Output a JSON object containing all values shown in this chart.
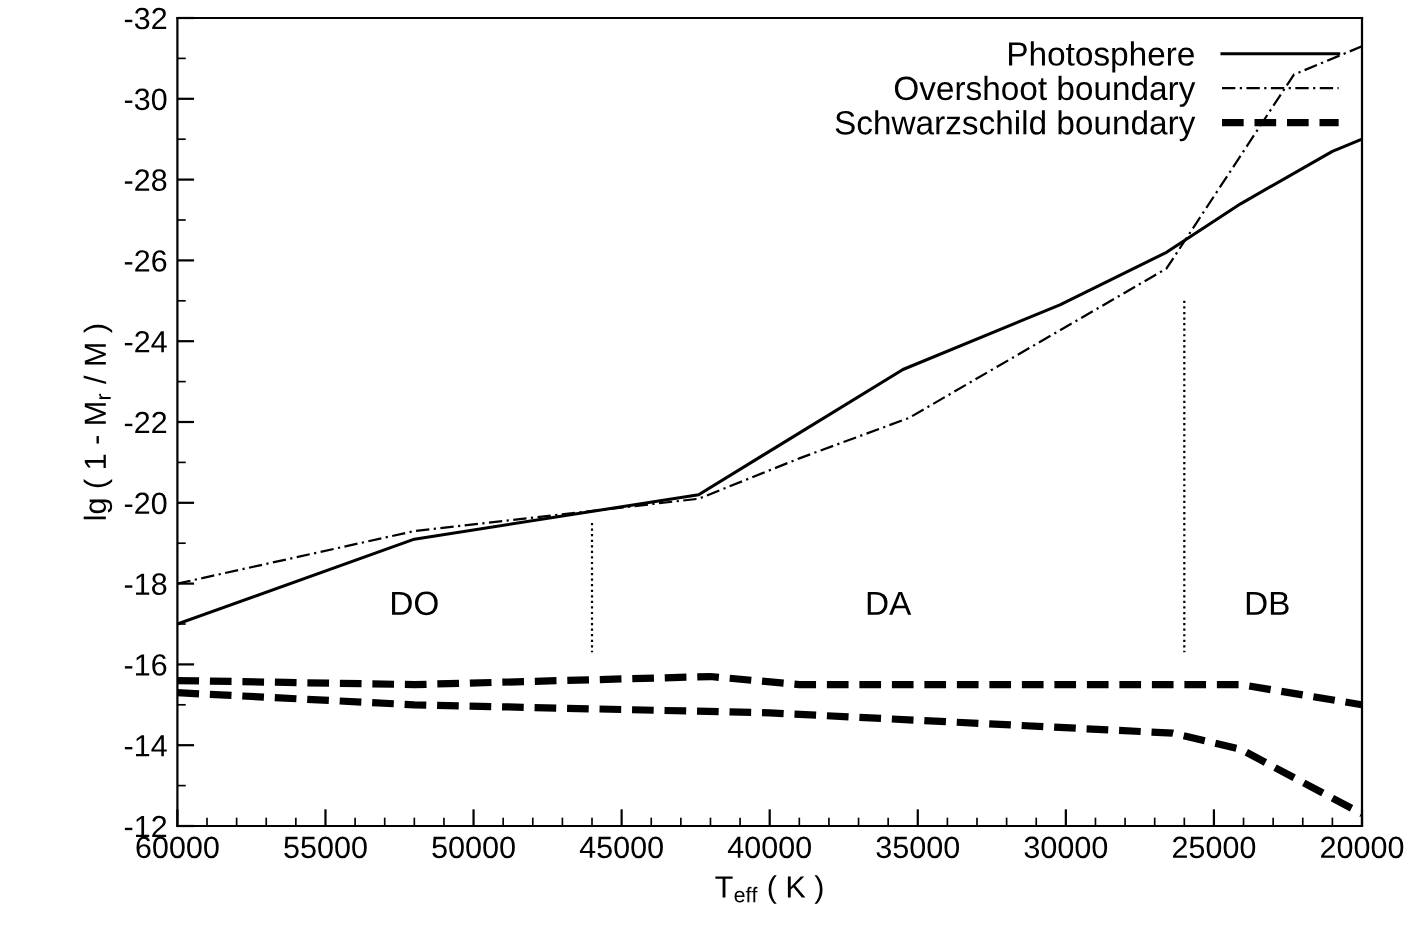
{
  "chart_data": {
    "type": "line",
    "xlabel": "T$_{eff}$ ( K )",
    "ylabel": "lg ( 1 - M$_{r}$ / M )",
    "xlim": [
      60000,
      20000
    ],
    "xticks": [
      60000,
      55000,
      50000,
      45000,
      40000,
      35000,
      30000,
      25000,
      20000
    ],
    "ylim": [
      -12,
      -32
    ],
    "yticks": [
      -32,
      -30,
      -28,
      -26,
      -24,
      -22,
      -20,
      -18,
      -16,
      -14,
      -12
    ],
    "grid": false,
    "legend": "top right",
    "marker": "none",
    "series": [
      {
        "name": "Photosphere",
        "color": "#000000",
        "line_style": "solid",
        "x": [
          60000,
          52000,
          42400,
          35500,
          30200,
          26600,
          24100,
          21000,
          20000
        ],
        "values": [
          -17.0,
          -19.1,
          -20.2,
          -23.3,
          -24.9,
          -26.2,
          -27.4,
          -28.7,
          -29.0
        ]
      },
      {
        "name": "Overshoot boundary",
        "color": "#000000",
        "line_style": "dashdot",
        "x": [
          60000,
          52000,
          42400,
          39000,
          35300,
          26600,
          22300,
          20000
        ],
        "values": [
          -18.0,
          -19.3,
          -20.1,
          -21.1,
          -22.1,
          -25.8,
          -30.6,
          -31.3
        ]
      },
      {
        "name": "Schwarzschild boundary",
        "color": "#000000",
        "line_style": "dashed",
        "x": [
          60000,
          52000,
          42000,
          39000,
          24100,
          20000
        ],
        "values": [
          -15.6,
          -15.5,
          -15.7,
          -15.5,
          -15.5,
          -15.0
        ]
      },
      {
        "color": "#000000",
        "line_style": "dashed",
        "x": [
          60000,
          52000,
          40000,
          26400,
          24100,
          20000
        ],
        "values": [
          -15.3,
          -15.0,
          -14.8,
          -14.3,
          -13.9,
          -12.3
        ]
      },
      {
        "color": "#000000",
        "line_style": "dotted",
        "x": [
          46000,
          46000
        ],
        "values": [
          -19.5,
          -16.3
        ]
      },
      {
        "color": "#000000",
        "line_style": "dotted",
        "x": [
          26000,
          26000
        ],
        "values": [
          -25.0,
          -16.3
        ]
      }
    ],
    "annotations": [
      "DO",
      "DA",
      "DB"
    ]
  }
}
